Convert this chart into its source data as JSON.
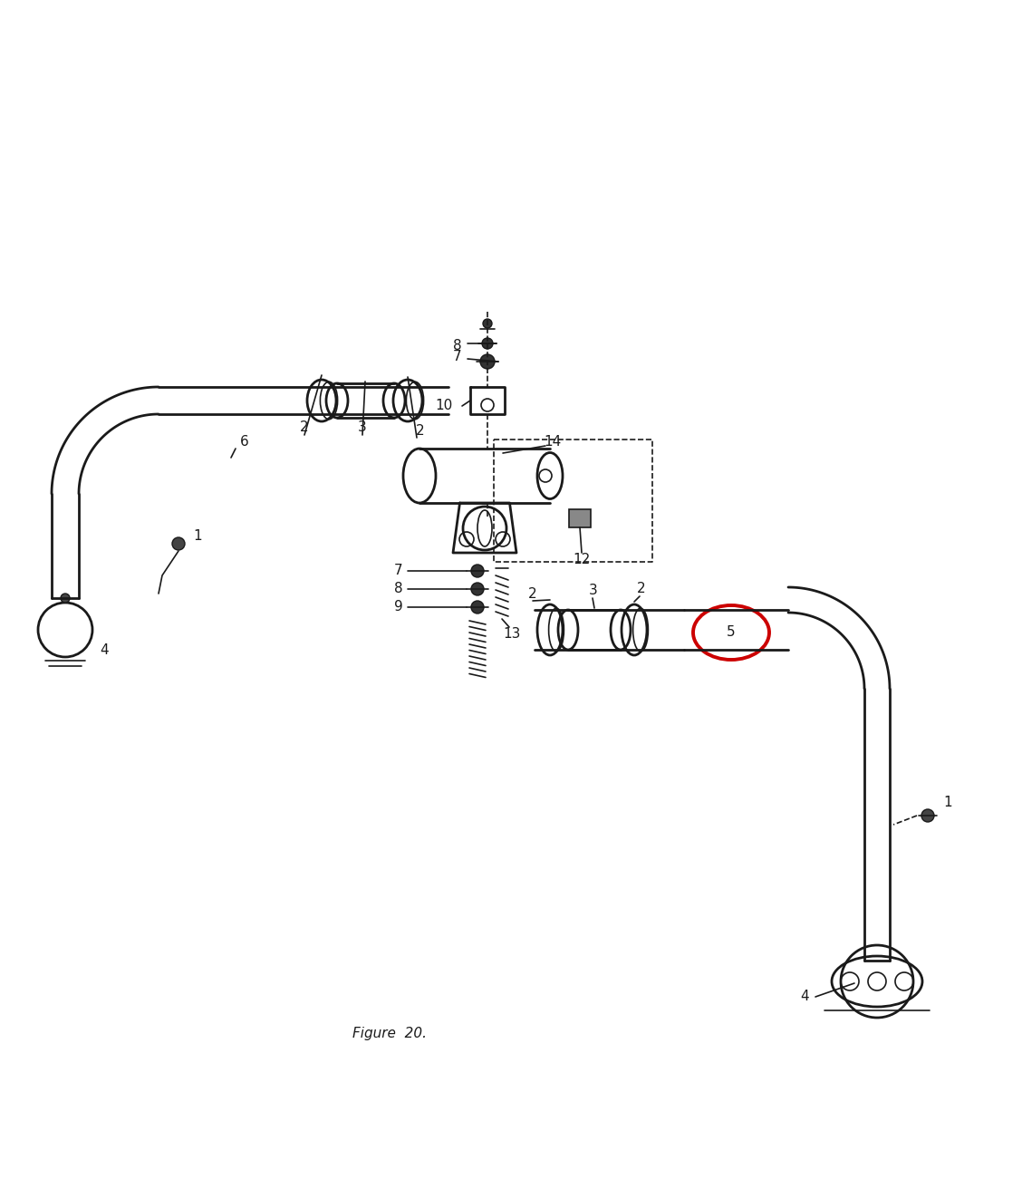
{
  "bg_color": "#ffffff",
  "line_color": "#1a1a1a",
  "red_circle_color": "#cc0000",
  "figure_caption": "Figure  20.",
  "figsize": [
    11.28,
    13.22
  ],
  "dpi": 100
}
